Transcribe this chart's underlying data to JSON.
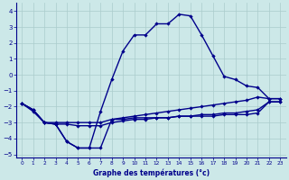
{
  "xlabel": "Graphe des températures (°c)",
  "background_color": "#cce8e8",
  "grid_color": "#aacccc",
  "line_color": "#00008b",
  "xlim": [
    -0.5,
    23.5
  ],
  "ylim": [
    -5.2,
    4.5
  ],
  "xticks": [
    0,
    1,
    2,
    3,
    4,
    5,
    6,
    7,
    8,
    9,
    10,
    11,
    12,
    13,
    14,
    15,
    16,
    17,
    18,
    19,
    20,
    21,
    22,
    23
  ],
  "yticks": [
    -5,
    -4,
    -3,
    -2,
    -1,
    0,
    1,
    2,
    3,
    4
  ],
  "temp_main": [
    -1.8,
    -2.2,
    -3.0,
    -3.1,
    -4.2,
    -4.6,
    -4.6,
    -2.3,
    -0.3,
    1.5,
    2.5,
    2.5,
    3.2,
    3.2,
    3.8,
    3.7,
    2.5,
    1.2,
    -0.1,
    -0.3,
    -0.7,
    -0.8,
    -1.5,
    -1.5
  ],
  "temp_dew": [
    -1.8,
    -2.2,
    -3.0,
    -3.1,
    -4.2,
    -4.6,
    -4.6,
    -4.6,
    -2.8,
    -2.8,
    -2.7,
    -2.7,
    -2.7,
    -2.7,
    -2.6,
    -2.6,
    -2.6,
    -2.6,
    -2.5,
    -2.5,
    -2.5,
    -2.4,
    -1.7,
    -1.7
  ],
  "temp_line2": [
    -1.8,
    -2.2,
    -3.0,
    -3.0,
    -3.0,
    -3.0,
    -3.0,
    -3.0,
    -2.8,
    -2.7,
    -2.6,
    -2.5,
    -2.4,
    -2.3,
    -2.2,
    -2.1,
    -2.0,
    -1.9,
    -1.8,
    -1.7,
    -1.6,
    -1.4,
    -1.5,
    -1.5
  ],
  "temp_line3": [
    -1.8,
    -2.3,
    -3.0,
    -3.1,
    -3.1,
    -3.2,
    -3.2,
    -3.2,
    -3.0,
    -2.9,
    -2.8,
    -2.8,
    -2.7,
    -2.7,
    -2.6,
    -2.6,
    -2.5,
    -2.5,
    -2.4,
    -2.4,
    -2.3,
    -2.2,
    -1.7,
    -1.7
  ]
}
